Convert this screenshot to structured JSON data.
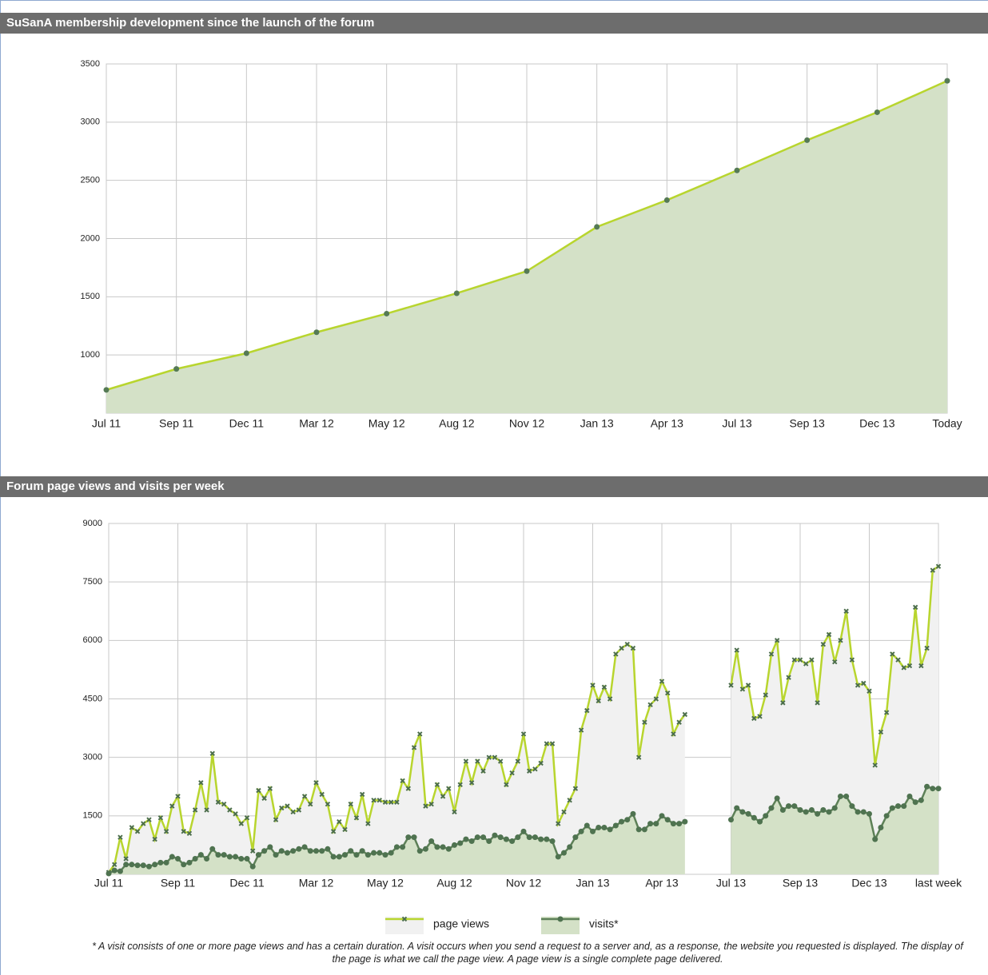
{
  "chart_data": [
    {
      "type": "area-line",
      "title": "SuSanA membership development since the launch of the forum",
      "categories": [
        "Jul 11",
        "Sep 11",
        "Dec 11",
        "Mar 12",
        "May 12",
        "Aug 12",
        "Nov 12",
        "Jan 13",
        "Apr 13",
        "Jul 13",
        "Sep 13",
        "Dec 13",
        "Today"
      ],
      "values": [
        700,
        880,
        1015,
        1195,
        1355,
        1530,
        1720,
        2100,
        2330,
        2585,
        2845,
        3085,
        3355
      ],
      "color": "#b8d52e",
      "marker_color": "#557a55",
      "marker": "circle",
      "fill_color": "#d4e1c7",
      "ylim": [
        500,
        3500
      ],
      "yticks": [
        1000,
        1500,
        2000,
        2500,
        3000,
        3500
      ],
      "grid": true
    },
    {
      "type": "area-line",
      "title": "Forum page views and visits per week",
      "categories": [
        "Jul 11",
        null,
        null,
        null,
        null,
        null,
        null,
        null,
        null,
        null,
        null,
        null,
        "Sep 11",
        null,
        null,
        null,
        null,
        null,
        null,
        null,
        null,
        null,
        null,
        null,
        "Dec 11",
        null,
        null,
        null,
        null,
        null,
        null,
        null,
        null,
        null,
        null,
        null,
        "Mar 12",
        null,
        null,
        null,
        null,
        null,
        null,
        null,
        null,
        null,
        null,
        null,
        "May 12",
        null,
        null,
        null,
        null,
        null,
        null,
        null,
        null,
        null,
        null,
        null,
        "Aug 12",
        null,
        null,
        null,
        null,
        null,
        null,
        null,
        null,
        null,
        null,
        null,
        "Nov 12",
        null,
        null,
        null,
        null,
        null,
        null,
        null,
        null,
        null,
        null,
        null,
        "Jan 13",
        null,
        null,
        null,
        null,
        null,
        null,
        null,
        null,
        null,
        null,
        null,
        "Apr 13",
        null,
        null,
        null,
        null,
        null,
        null,
        null,
        null,
        null,
        null,
        null,
        "Jul 13",
        null,
        null,
        null,
        null,
        null,
        null,
        null,
        null,
        null,
        null,
        null,
        "Sep 13",
        null,
        null,
        null,
        null,
        null,
        null,
        null,
        null,
        null,
        null,
        null,
        "Dec 13",
        null,
        null,
        null,
        null,
        null,
        null,
        null,
        null,
        null,
        null,
        null,
        "last week"
      ],
      "series": [
        {
          "name": "page views",
          "color": "#b8d52e",
          "marker_color": "#4c6e4c",
          "marker": "x",
          "fill_color": "#f1f1f1",
          "values": [
            50,
            250,
            950,
            400,
            1200,
            1100,
            1300,
            1400,
            900,
            1450,
            1100,
            1750,
            2000,
            1100,
            1050,
            1650,
            2350,
            1650,
            3100,
            1850,
            1800,
            1650,
            1550,
            1300,
            1450,
            600,
            2150,
            1950,
            2200,
            1400,
            1700,
            1750,
            1600,
            1650,
            2000,
            1800,
            2350,
            2050,
            1800,
            1100,
            1350,
            1150,
            1800,
            1450,
            2050,
            1300,
            1900,
            1900,
            1850,
            1850,
            1850,
            2400,
            2200,
            3250,
            3600,
            1750,
            1800,
            2300,
            2000,
            2200,
            1600,
            2300,
            2900,
            2350,
            2900,
            2650,
            3000,
            3000,
            2900,
            2300,
            2600,
            2900,
            3600,
            2650,
            2700,
            2850,
            3350,
            3350,
            1300,
            1600,
            1900,
            2200,
            3700,
            4200,
            4850,
            4450,
            4800,
            4500,
            5650,
            5800,
            5900,
            5800,
            3000,
            3900,
            4350,
            4500,
            4950,
            4650,
            3600,
            3900,
            4100,
            null,
            null,
            null,
            null,
            null,
            null,
            null,
            4850,
            5750,
            4750,
            4850,
            4000,
            4050,
            4600,
            5650,
            6000,
            4400,
            5050,
            5500,
            5500,
            5400,
            5500,
            4400,
            5900,
            6150,
            5450,
            6000,
            6750,
            5500,
            4850,
            4900,
            4700,
            2800,
            3650,
            4150,
            5650,
            5500,
            5300,
            5350,
            6850,
            5350,
            5800,
            7800,
            7900
          ]
        },
        {
          "name": "visits*",
          "color": "#5d8057",
          "marker_color": "#4f7350",
          "marker": "circle",
          "fill_color": "#d4e1c7",
          "values": [
            20,
            100,
            80,
            250,
            250,
            230,
            230,
            200,
            250,
            300,
            300,
            450,
            400,
            250,
            300,
            400,
            500,
            400,
            650,
            500,
            500,
            450,
            450,
            400,
            400,
            200,
            500,
            600,
            700,
            500,
            600,
            550,
            600,
            650,
            700,
            600,
            600,
            600,
            650,
            450,
            450,
            500,
            600,
            500,
            600,
            500,
            550,
            550,
            500,
            550,
            700,
            700,
            950,
            950,
            600,
            650,
            850,
            700,
            700,
            650,
            750,
            800,
            900,
            850,
            950,
            950,
            850,
            1000,
            950,
            900,
            850,
            950,
            1100,
            950,
            950,
            900,
            900,
            850,
            450,
            550,
            700,
            950,
            1100,
            1250,
            1100,
            1200,
            1200,
            1150,
            1250,
            1350,
            1400,
            1550,
            1150,
            1150,
            1300,
            1300,
            1500,
            1400,
            1300,
            1300,
            1350,
            null,
            null,
            null,
            null,
            null,
            null,
            null,
            1400,
            1700,
            1600,
            1550,
            1450,
            1350,
            1500,
            1700,
            1950,
            1650,
            1750,
            1750,
            1650,
            1600,
            1650,
            1550,
            1650,
            1600,
            1700,
            2000,
            2000,
            1750,
            1600,
            1600,
            1550,
            900,
            1200,
            1500,
            1700,
            1750,
            1750,
            2000,
            1850,
            1900,
            2250,
            2200,
            2200
          ]
        }
      ],
      "ylim": [
        0,
        9000
      ],
      "yticks": [
        1500,
        3000,
        4500,
        6000,
        7500,
        9000
      ],
      "grid": true,
      "legend": "bottom",
      "note": "* A visit consists of one or more page views and has a certain duration. A visit occurs when you send a request to a server and, as a response, the website you requested is displayed. The display of the page is what we call the page view. A page view is a single complete page delivered."
    }
  ]
}
